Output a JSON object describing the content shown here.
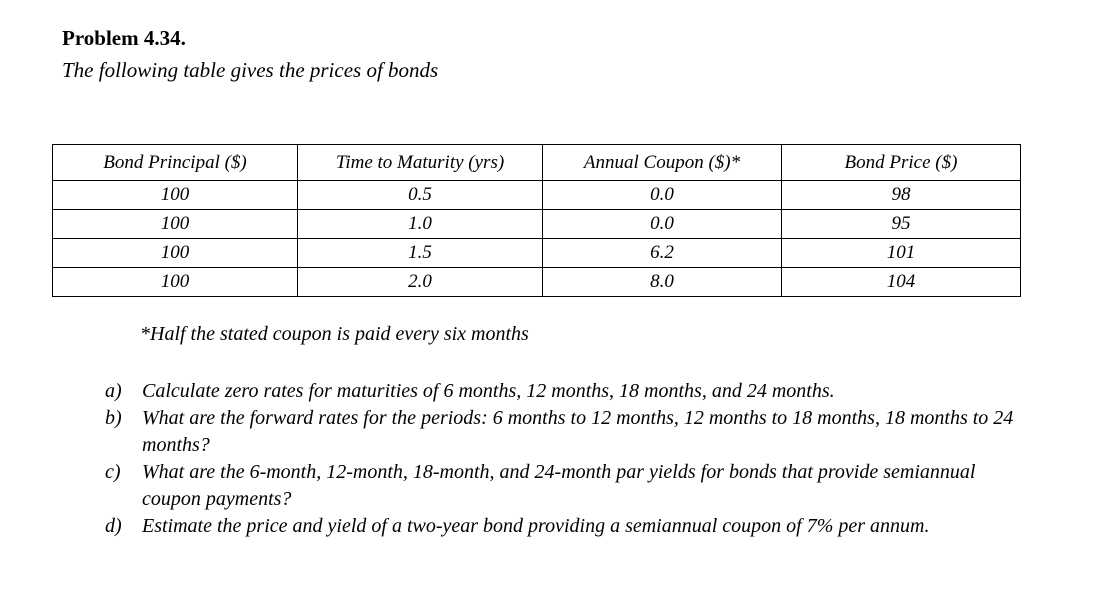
{
  "page": {
    "title": "Problem 4.34.",
    "subtitle": "The following table gives the prices of bonds",
    "footnote": "*Half the stated coupon is paid every six months"
  },
  "table": {
    "headers": [
      "Bond Principal ($)",
      "Time to Maturity (yrs)",
      "Annual Coupon ($)*",
      "Bond Price ($)"
    ],
    "rows": [
      [
        "100",
        "0.5",
        "0.0",
        "98"
      ],
      [
        "100",
        "1.0",
        "0.0",
        "95"
      ],
      [
        "100",
        "1.5",
        "6.2",
        "101"
      ],
      [
        "100",
        "2.0",
        "8.0",
        "104"
      ]
    ]
  },
  "questions": [
    {
      "label": "a)",
      "text": "Calculate zero rates for maturities of 6 months, 12 months, 18 months, and 24 months."
    },
    {
      "label": "b)",
      "text": "What are the forward rates for the periods: 6 months to 12 months, 12 months to 18 months, 18 months to 24 months?"
    },
    {
      "label": "c)",
      "text": "What are the 6-month, 12-month, 18-month, and 24-month par yields for bonds that provide semiannual coupon payments?"
    },
    {
      "label": "d)",
      "text": "Estimate the price and yield of a two-year bond providing a semiannual coupon of 7% per annum."
    }
  ]
}
